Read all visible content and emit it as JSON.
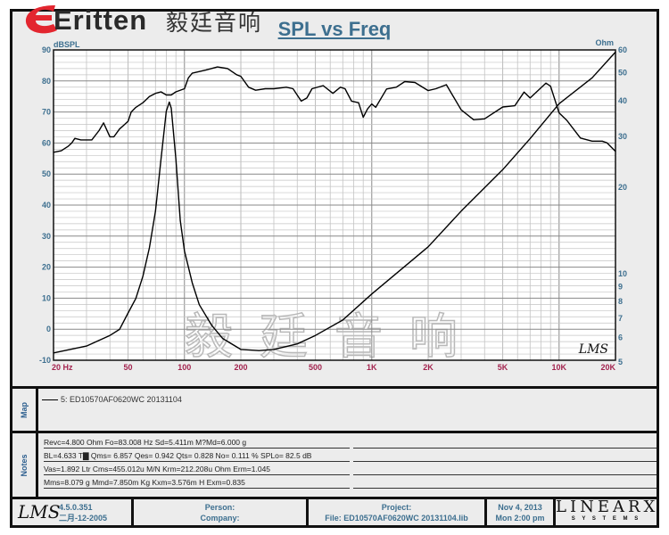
{
  "logo": {
    "brand": "Eritten",
    "chinese": "毅廷音响"
  },
  "watermark": "毅廷音响",
  "chart_data": {
    "type": "line",
    "title": "SPL vs Freq",
    "xscale": "log",
    "xlim": [
      20,
      20000
    ],
    "xticks": [
      {
        "v": 20,
        "label": "20  Hz"
      },
      {
        "v": 50,
        "label": "50"
      },
      {
        "v": 100,
        "label": "100"
      },
      {
        "v": 200,
        "label": "200"
      },
      {
        "v": 500,
        "label": "500"
      },
      {
        "v": 1000,
        "label": "1K"
      },
      {
        "v": 2000,
        "label": "2K"
      },
      {
        "v": 5000,
        "label": "5K"
      },
      {
        "v": 10000,
        "label": "10K"
      },
      {
        "v": 20000,
        "label": "20K"
      }
    ],
    "ylabel": "dBSPL",
    "ylim": [
      -10,
      90
    ],
    "yticks": [
      90,
      80,
      70,
      60,
      50,
      40,
      30,
      20,
      10,
      0,
      -10
    ],
    "y2label": "Ohm",
    "y2scale": "log",
    "y2lim": [
      5,
      60
    ],
    "y2ticks": [
      60,
      50,
      40,
      30,
      20,
      10,
      9,
      8,
      7,
      6,
      5
    ],
    "grid": true,
    "series": [
      {
        "axis": "left",
        "color": "#000000",
        "points": [
          [
            20,
            57
          ],
          [
            22,
            57.5
          ],
          [
            24,
            59
          ],
          [
            25,
            60
          ],
          [
            26,
            61.5
          ],
          [
            28,
            61
          ],
          [
            30,
            61
          ],
          [
            32,
            61
          ],
          [
            35,
            64
          ],
          [
            37,
            66.5
          ],
          [
            40,
            62
          ],
          [
            42,
            62
          ],
          [
            45,
            64.5
          ],
          [
            48,
            66
          ],
          [
            50,
            67
          ],
          [
            52,
            70
          ],
          [
            55,
            71.5
          ],
          [
            60,
            73
          ],
          [
            65,
            75
          ],
          [
            70,
            76
          ],
          [
            75,
            76.5
          ],
          [
            80,
            75.5
          ],
          [
            85,
            75.5
          ],
          [
            90,
            76.5
          ],
          [
            100,
            77.5
          ],
          [
            105,
            81
          ],
          [
            110,
            82.5
          ],
          [
            130,
            83.5
          ],
          [
            150,
            84.5
          ],
          [
            170,
            84
          ],
          [
            190,
            82
          ],
          [
            200,
            81.5
          ],
          [
            220,
            78
          ],
          [
            240,
            77
          ],
          [
            270,
            77.5
          ],
          [
            300,
            77.5
          ],
          [
            350,
            78
          ],
          [
            380,
            77.5
          ],
          [
            420,
            73.5
          ],
          [
            450,
            74.5
          ],
          [
            480,
            77.5
          ],
          [
            550,
            78.5
          ],
          [
            620,
            76
          ],
          [
            680,
            78
          ],
          [
            720,
            77.5
          ],
          [
            780,
            73.5
          ],
          [
            850,
            73
          ],
          [
            900,
            68.3
          ],
          [
            950,
            71
          ],
          [
            1000,
            72.6
          ],
          [
            1050,
            71.5
          ],
          [
            1200,
            77.4
          ],
          [
            1350,
            78
          ],
          [
            1500,
            79.8
          ],
          [
            1700,
            79.5
          ],
          [
            2000,
            76.9
          ],
          [
            2200,
            77.5
          ],
          [
            2500,
            78.8
          ],
          [
            3000,
            70.7
          ],
          [
            3500,
            67.5
          ],
          [
            4000,
            67.8
          ],
          [
            5000,
            71.6
          ],
          [
            5800,
            72
          ],
          [
            6500,
            76.4
          ],
          [
            7000,
            74.5
          ],
          [
            8500,
            79.3
          ],
          [
            9000,
            78.3
          ],
          [
            10000,
            69.7
          ],
          [
            11000,
            67.3
          ],
          [
            13000,
            61.6
          ],
          [
            15000,
            60.6
          ],
          [
            17000,
            60.6
          ],
          [
            18000,
            60.1
          ],
          [
            20000,
            57.3
          ]
        ]
      },
      {
        "axis": "right",
        "color": "#000000",
        "points": [
          [
            20,
            5.3
          ],
          [
            30,
            5.6
          ],
          [
            40,
            6.1
          ],
          [
            45,
            6.4
          ],
          [
            50,
            7.3
          ],
          [
            55,
            8.2
          ],
          [
            60,
            9.8
          ],
          [
            65,
            12.3
          ],
          [
            70,
            16.5
          ],
          [
            75,
            25
          ],
          [
            80,
            36.7
          ],
          [
            83,
            39.5
          ],
          [
            85,
            37.6
          ],
          [
            90,
            25
          ],
          [
            95,
            15.3
          ],
          [
            100,
            12
          ],
          [
            110,
            9.3
          ],
          [
            120,
            7.8
          ],
          [
            140,
            6.6
          ],
          [
            160,
            5.95
          ],
          [
            200,
            5.45
          ],
          [
            250,
            5.4
          ],
          [
            300,
            5.45
          ],
          [
            400,
            5.7
          ],
          [
            500,
            6.1
          ],
          [
            700,
            6.9
          ],
          [
            1000,
            8.5
          ],
          [
            2000,
            12.4
          ],
          [
            3000,
            16.5
          ],
          [
            5000,
            23
          ],
          [
            7000,
            29.5
          ],
          [
            10000,
            39
          ],
          [
            15000,
            48
          ],
          [
            20000,
            59
          ]
        ]
      }
    ],
    "annotation": "LMS"
  },
  "map": {
    "label": "Map",
    "entry": "5: ED10570AF0620WC   20131104"
  },
  "notes": {
    "label": "Notes",
    "lines": [
      "Revc=4.800 Ohm  Fo=83.008 Hz  Sd=5.411m M?Md=6.000 g",
      "BL=4.633 T▇  Qms= 6.857  Qes= 0.942  Qts= 0.828  No= 0.111 %  SPLo= 82.5 dB",
      "Vas=1.892 Ltr  Cms=455.012u M/N  Krm=212.208u Ohm  Erm=1.045",
      "Mms=8.079 g  Mmd=7.850m Kg  Kxm=3.576m H  Exm=0.835"
    ]
  },
  "footer": {
    "lms_logo": "LMS",
    "version": "4.5.0.351",
    "build_date": "二月-12-2005",
    "person": "Person:",
    "company": "Company:",
    "project": "Project:",
    "file": "File: ED10570AF0620WC 20131104.lib",
    "date": "Nov  4, 2013",
    "time": "Mon  2:00 pm",
    "linearx": "LINEARX",
    "systems": "S Y S T E M S"
  }
}
